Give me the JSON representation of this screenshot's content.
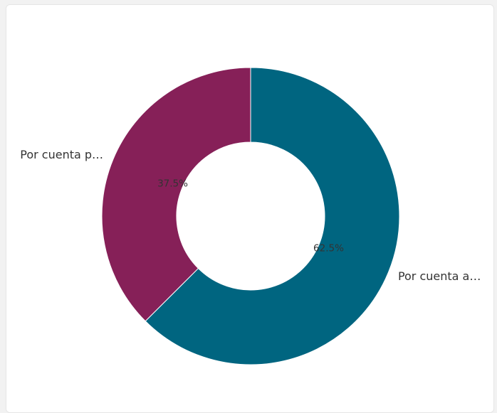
{
  "chart_data": {
    "type": "pie",
    "hole": true,
    "categories": [
      "Por cuenta a…",
      "Por cuenta p…"
    ],
    "values": [
      62.5,
      37.5
    ],
    "value_labels": [
      "62.5%",
      "37.5%"
    ],
    "colors": [
      "#006580",
      "#862058"
    ]
  }
}
